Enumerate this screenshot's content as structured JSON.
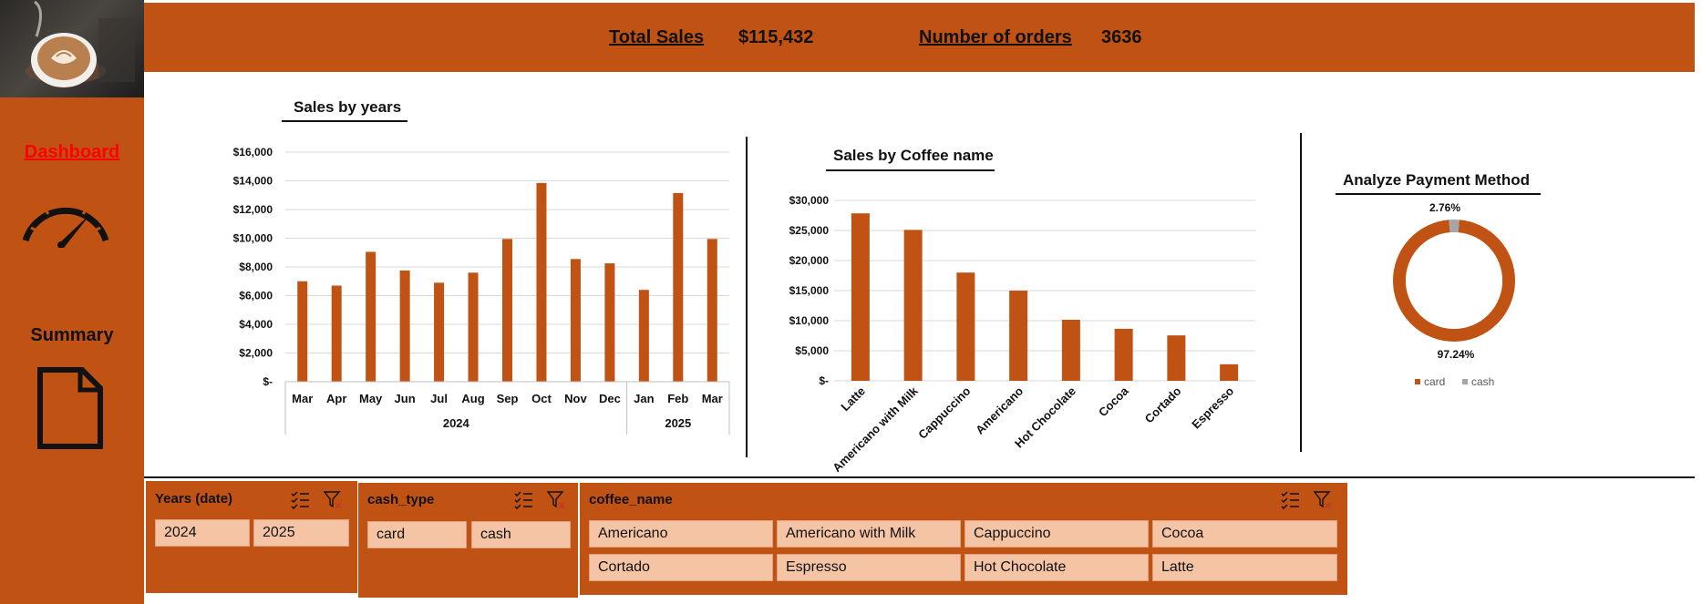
{
  "sidebar": {
    "dashboard_label": "Dashboard",
    "summary_label": "Summary",
    "icons": [
      "coffee-photo",
      "gauge-icon",
      "document-icon"
    ]
  },
  "header": {
    "total_sales_label": "Total Sales",
    "total_sales_value": "$115,432",
    "orders_label": "Number of orders",
    "orders_value": "3636"
  },
  "colors": {
    "accent": "#C05213",
    "slicer_item": "#F5C4A5",
    "cash": "#A6A6A6"
  },
  "chart_data": [
    {
      "type": "bar",
      "title": "Sales by years",
      "categories": [
        "Mar",
        "Apr",
        "May",
        "Jun",
        "Jul",
        "Aug",
        "Sep",
        "Oct",
        "Nov",
        "Dec",
        "Jan",
        "Feb",
        "Mar"
      ],
      "groups": [
        {
          "label": "2024",
          "count": 10
        },
        {
          "label": "2025",
          "count": 3
        }
      ],
      "values": [
        7000,
        6700,
        9050,
        7750,
        6900,
        7600,
        9950,
        13850,
        8550,
        8250,
        6400,
        13150,
        9950
      ],
      "ylim": [
        0,
        16000
      ],
      "yticks": [
        0,
        2000,
        4000,
        6000,
        8000,
        10000,
        12000,
        14000,
        16000
      ],
      "ytick_labels": [
        "$-",
        "$2,000",
        "$4,000",
        "$6,000",
        "$8,000",
        "$10,000",
        "$12,000",
        "$14,000",
        "$16,000"
      ],
      "grid": true,
      "legend": "none"
    },
    {
      "type": "bar",
      "title": "Sales by Coffee name",
      "categories": [
        "Latte",
        "Americano with Milk",
        "Cappuccino",
        "Americano",
        "Hot Chocolate",
        "Cocoa",
        "Cortado",
        "Espresso"
      ],
      "values": [
        27850,
        25100,
        18000,
        15000,
        10150,
        8650,
        7550,
        2750
      ],
      "ylim": [
        0,
        30000
      ],
      "yticks": [
        0,
        5000,
        10000,
        15000,
        20000,
        25000,
        30000
      ],
      "ytick_labels": [
        "$-",
        "$5,000",
        "$10,000",
        "$15,000",
        "$20,000",
        "$25,000",
        "$30,000"
      ],
      "grid": true,
      "legend": "none"
    },
    {
      "type": "pie",
      "title": "Analyze Payment Method",
      "donut": true,
      "categories": [
        "card",
        "cash"
      ],
      "values": [
        97.24,
        2.76
      ],
      "data_labels": [
        "97.24%",
        "2.76%"
      ],
      "colors": [
        "#C05213",
        "#A6A6A6"
      ],
      "legend": "bottom"
    }
  ],
  "slicers": {
    "years": {
      "title": "Years (date)",
      "items": [
        "2024",
        "2025"
      ]
    },
    "cash_type": {
      "title": "cash_type",
      "items": [
        "card",
        "cash"
      ]
    },
    "coffee_name": {
      "title": "coffee_name",
      "items": [
        "Americano",
        "Americano with Milk",
        "Cappuccino",
        "Cocoa",
        "Cortado",
        "Espresso",
        "Hot Chocolate",
        "Latte"
      ]
    }
  }
}
